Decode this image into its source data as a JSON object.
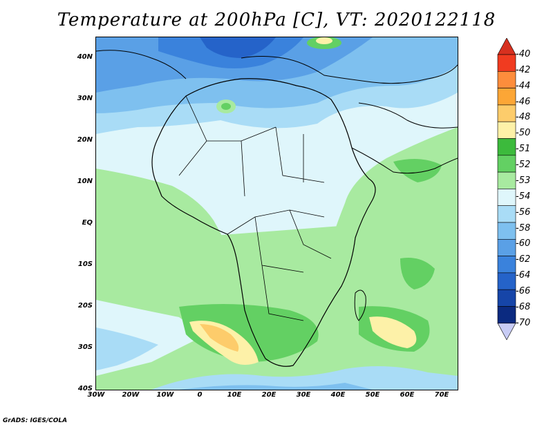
{
  "header": {
    "title": "Temperature at 200hPa [C], VT: 2020122118"
  },
  "map": {
    "lat_labels": [
      "40N",
      "30N",
      "20N",
      "10N",
      "EQ",
      "10S",
      "20S",
      "30S",
      "40S"
    ],
    "lon_labels": [
      "30W",
      "20W",
      "10W",
      "0",
      "10E",
      "20E",
      "30E",
      "40E",
      "50E",
      "60E",
      "70E"
    ],
    "background_color": "#dff6fb"
  },
  "legend": {
    "levels": [
      {
        "label": "-40",
        "color": "#d7301f"
      },
      {
        "label": "-42",
        "color": "#f03b20"
      },
      {
        "label": "-44",
        "color": "#fd8d3c"
      },
      {
        "label": "-46",
        "color": "#fca636"
      },
      {
        "label": "-48",
        "color": "#fdcc6b"
      },
      {
        "label": "-50",
        "color": "#fdf1a8"
      },
      {
        "label": "-51",
        "color": "#3cba3c"
      },
      {
        "label": "-52",
        "color": "#63d063"
      },
      {
        "label": "-53",
        "color": "#a8eaa0"
      },
      {
        "label": "-54",
        "color": "#dff6fb"
      },
      {
        "label": "-56",
        "color": "#a9dcf6"
      },
      {
        "label": "-58",
        "color": "#7ec0ef"
      },
      {
        "label": "-60",
        "color": "#5aa0e6"
      },
      {
        "label": "-62",
        "color": "#3a82dc"
      },
      {
        "label": "-64",
        "color": "#2563c9"
      },
      {
        "label": "-66",
        "color": "#1645a8"
      },
      {
        "label": "-68",
        "color": "#0b2a80"
      },
      {
        "label": "-70",
        "color": "#0b1466"
      }
    ],
    "top_arrow_color": "#d7301f",
    "bottom_arrow_color": "#c8ccf5"
  },
  "footer": {
    "credit": "GrADS: IGES/COLA"
  }
}
